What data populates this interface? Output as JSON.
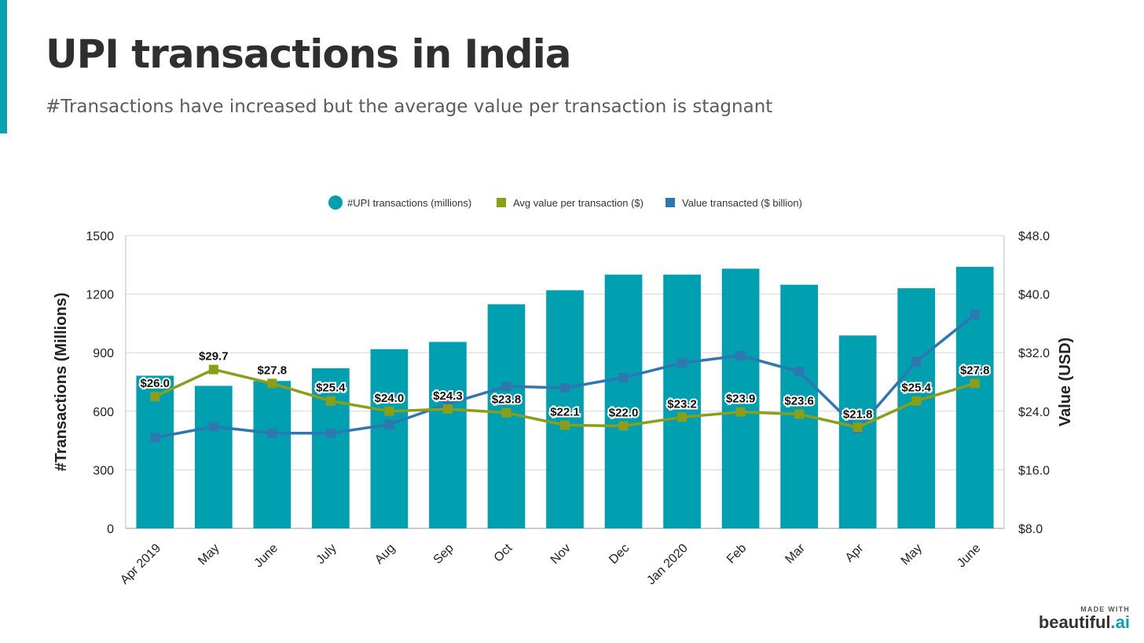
{
  "header": {
    "title": "UPI transactions in India",
    "subtitle": "#Transactions have increased but the average value per transaction is stagnant"
  },
  "branding": {
    "made_with": "MADE WITH",
    "logo_main": "beautiful",
    "logo_suffix": ".ai"
  },
  "colors": {
    "bars": "#00a0b0",
    "avg": "#8a9e1a",
    "value": "#2e77b1",
    "accent": "#0aa0b4",
    "grid": "#d6d6d6"
  },
  "chart_data": {
    "type": "bar",
    "categories": [
      "Apr 2019",
      "May",
      "June",
      "July",
      "Aug",
      "Sep",
      "Oct",
      "Nov",
      "Dec",
      "Jan 2020",
      "Feb",
      "Mar",
      "Apr",
      "May",
      "June"
    ],
    "series": [
      {
        "name": "#UPI transactions (millions)",
        "type": "bar",
        "axis": "left",
        "values": [
          782,
          730,
          755,
          820,
          918,
          955,
          1148,
          1220,
          1300,
          1300,
          1330,
          1248,
          988,
          1230,
          1340
        ]
      },
      {
        "name": "Avg value per transaction ($)",
        "type": "line",
        "axis": "right",
        "values": [
          26.0,
          29.7,
          27.8,
          25.4,
          24.0,
          24.3,
          23.8,
          22.1,
          22.0,
          23.2,
          23.9,
          23.6,
          21.8,
          25.4,
          27.8
        ],
        "labels": [
          "$26.0",
          "$29.7",
          "$27.8",
          "$25.4",
          "$24.0",
          "$24.3",
          "$23.8",
          "$22.1",
          "$22.0",
          "$23.2",
          "$23.9",
          "$23.6",
          "$21.8",
          "$25.4",
          "$27.8"
        ]
      },
      {
        "name": "Value transacted ($ billion)",
        "type": "line",
        "axis": "right",
        "values": [
          20.4,
          21.9,
          21.0,
          21.0,
          22.2,
          25.0,
          27.4,
          27.2,
          28.6,
          30.6,
          31.6,
          29.4,
          21.6,
          30.8,
          37.2
        ]
      }
    ],
    "ylabel": "#Transactions (Millions)",
    "y2label": "Value (USD)",
    "ylim": [
      0,
      1500
    ],
    "y2lim": [
      8,
      48
    ],
    "yticks": [
      "0",
      "300",
      "600",
      "900",
      "1200",
      "1500"
    ],
    "y2ticks": [
      "$8.0",
      "$16.0",
      "$24.0",
      "$32.0",
      "$40.0",
      "$48.0"
    ],
    "grid": true,
    "legend_position": "top-center"
  }
}
